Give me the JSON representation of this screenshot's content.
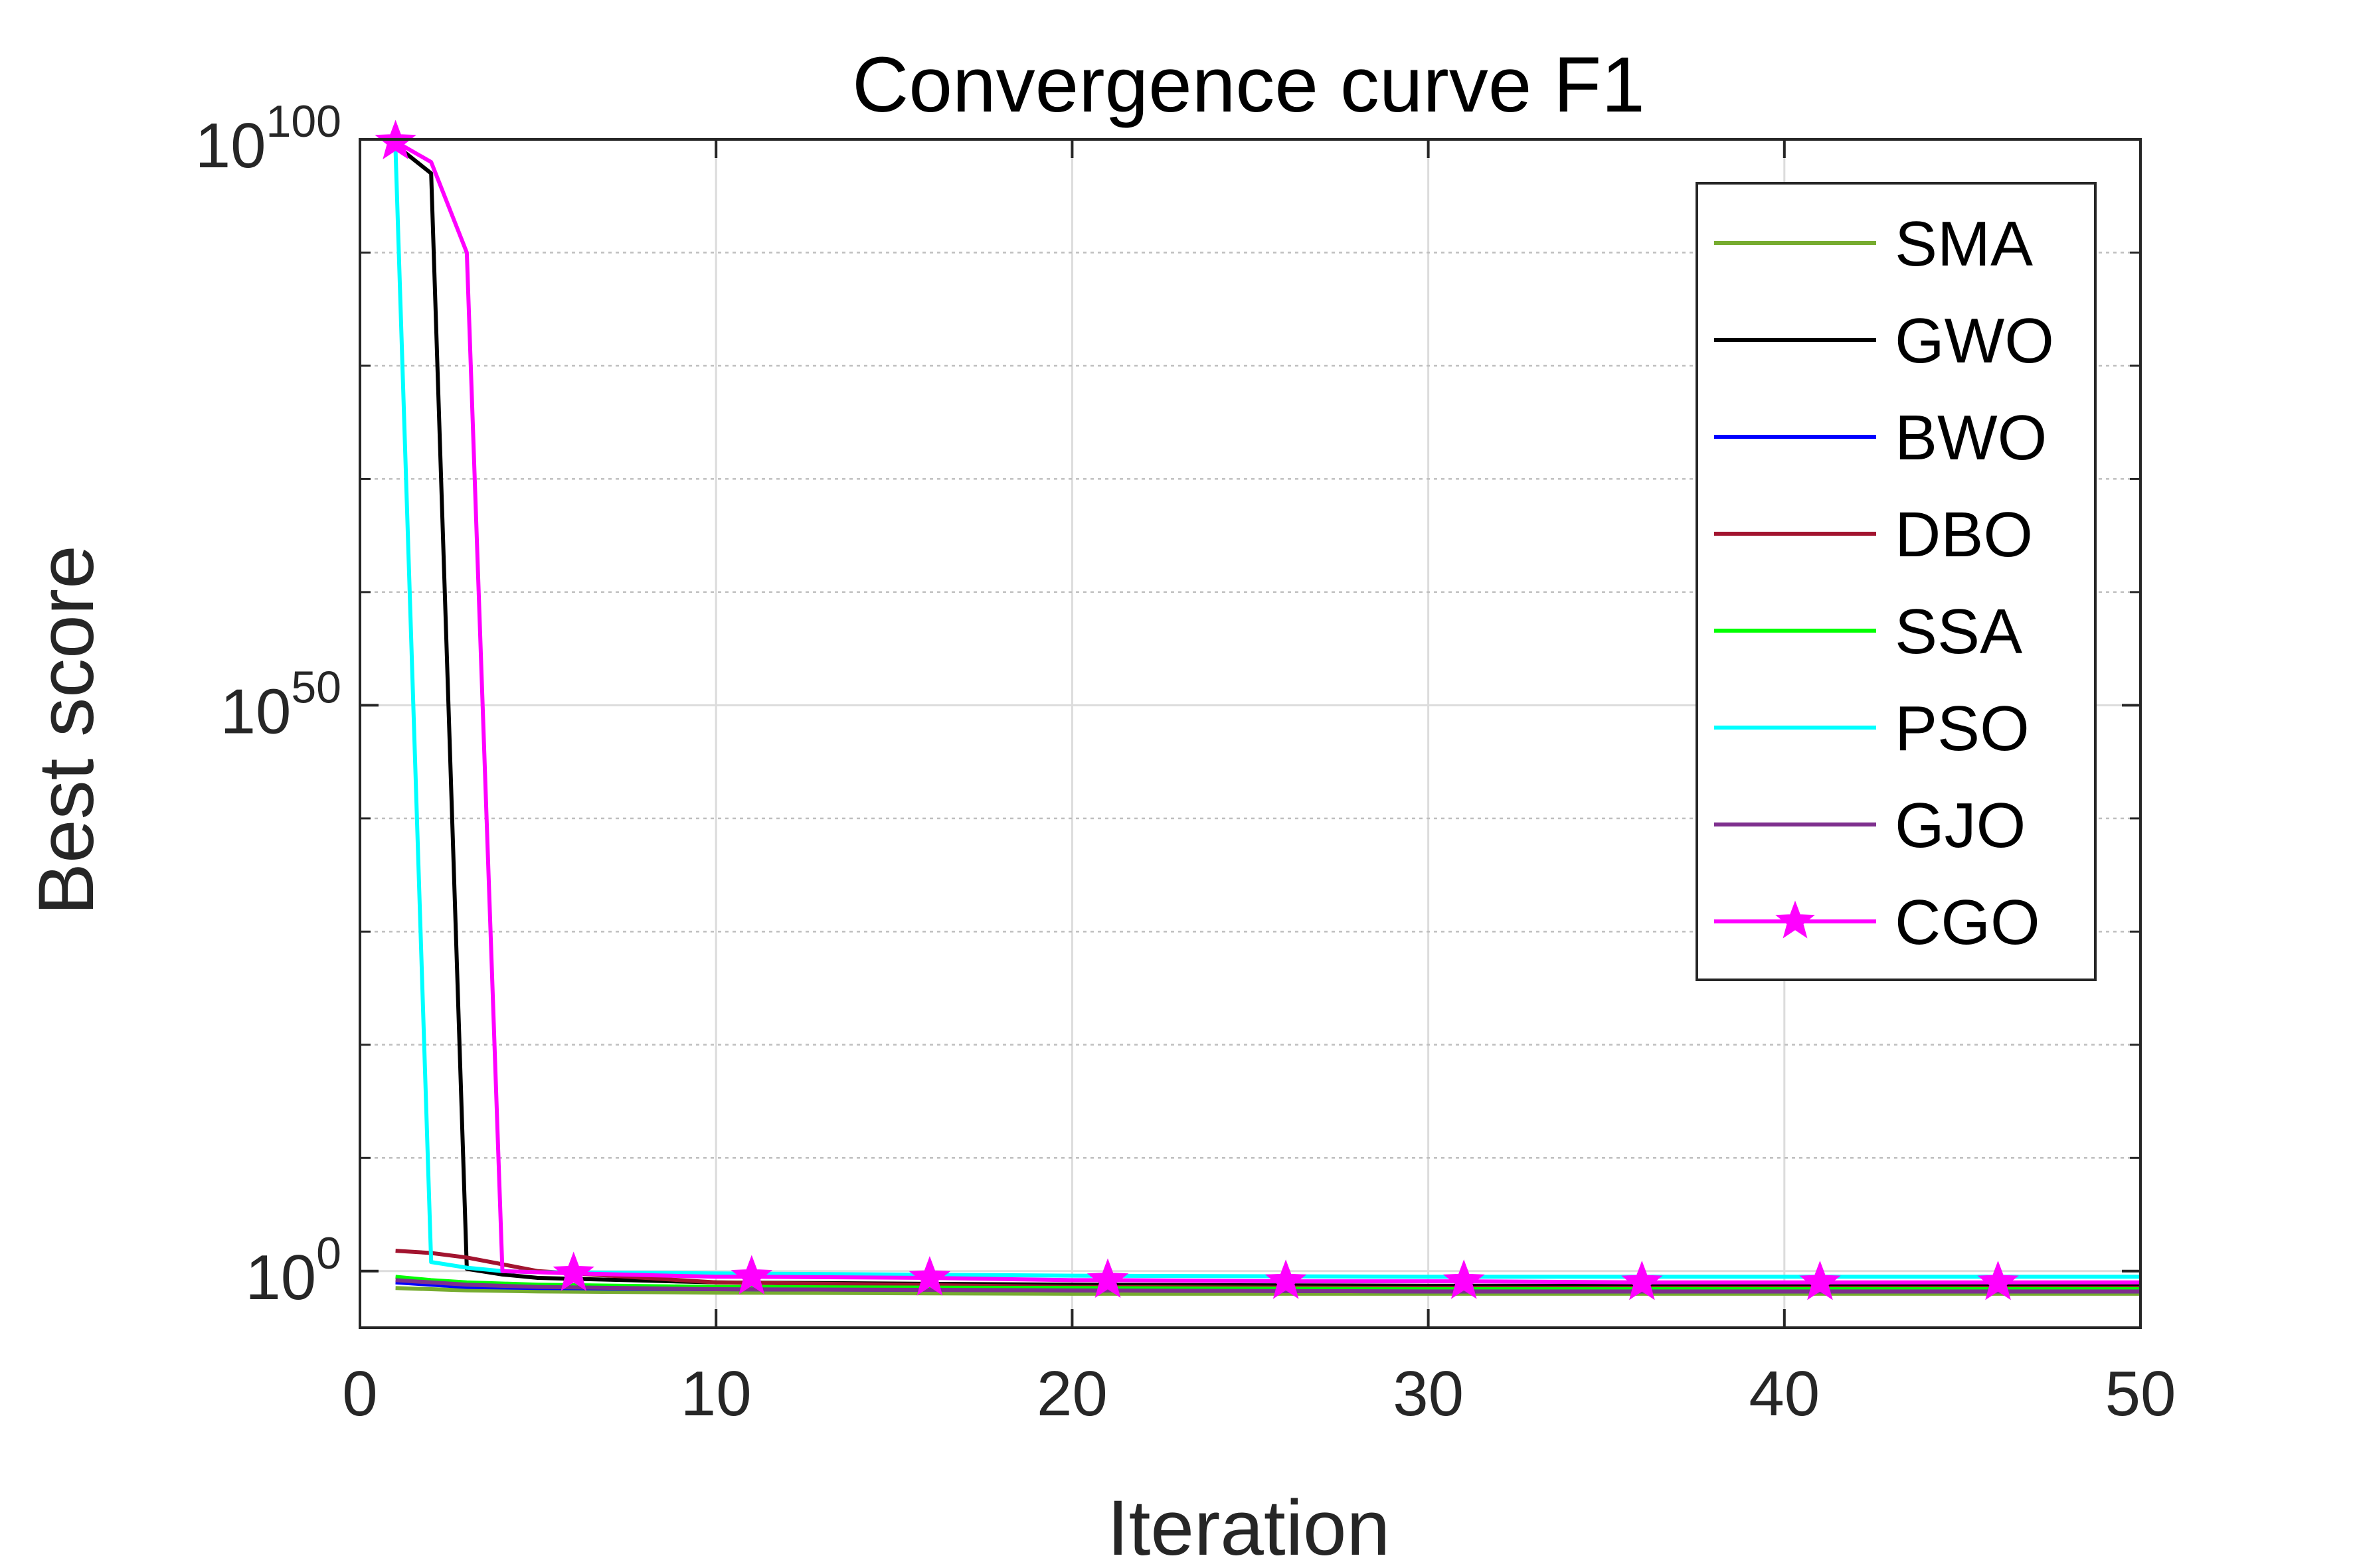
{
  "chart_data": {
    "type": "line",
    "title": "Convergence curve F1",
    "xlabel": "Iteration",
    "ylabel": "Best score",
    "yscale": "log",
    "xlim": [
      0,
      50
    ],
    "ylim_exponent": [
      -5,
      100
    ],
    "xticks": [
      "0",
      "10",
      "20",
      "30",
      "40",
      "50"
    ],
    "yticks": [
      {
        "base": "10",
        "exp": "100",
        "value_exp": 100
      },
      {
        "base": "10",
        "exp": "50",
        "value_exp": 50
      },
      {
        "base": "10",
        "exp": "0",
        "value_exp": 0
      }
    ],
    "grid": true,
    "legend_position": "top-right",
    "series": [
      {
        "name": "SMA",
        "color": "#77ac30",
        "marker": "none",
        "x": [
          1,
          2,
          3,
          5,
          10,
          20,
          30,
          40,
          50
        ],
        "log10_y": [
          -1.5,
          -1.6,
          -1.7,
          -1.8,
          -1.9,
          -2.0,
          -2.0,
          -2.0,
          -2.0
        ]
      },
      {
        "name": "GWO",
        "color": "#000000",
        "marker": "none",
        "x": [
          1,
          2,
          3,
          4,
          5,
          10,
          20,
          30,
          40,
          50
        ],
        "log10_y": [
          99.5,
          97.0,
          0.2,
          -0.3,
          -0.6,
          -1.0,
          -1.2,
          -1.3,
          -1.3,
          -1.3
        ]
      },
      {
        "name": "BWO",
        "color": "#0000ff",
        "marker": "none",
        "x": [
          1,
          2,
          3,
          5,
          10,
          20,
          30,
          40,
          50
        ],
        "log10_y": [
          -1.0,
          -1.2,
          -1.4,
          -1.5,
          -1.6,
          -1.7,
          -1.8,
          -1.8,
          -1.8
        ]
      },
      {
        "name": "DBO",
        "color": "#a2142f",
        "marker": "none",
        "x": [
          1,
          2,
          3,
          4,
          5,
          10,
          20,
          30,
          40,
          50
        ],
        "log10_y": [
          1.8,
          1.6,
          1.2,
          0.6,
          0.0,
          -1.0,
          -1.4,
          -1.5,
          -1.5,
          -1.5
        ]
      },
      {
        "name": "SSA",
        "color": "#00ff00",
        "marker": "none",
        "x": [
          1,
          2,
          3,
          5,
          10,
          20,
          30,
          40,
          50
        ],
        "log10_y": [
          -0.5,
          -0.8,
          -1.0,
          -1.2,
          -1.4,
          -1.5,
          -1.6,
          -1.6,
          -1.6
        ]
      },
      {
        "name": "PSO",
        "color": "#00ffff",
        "marker": "none",
        "x": [
          1,
          2,
          3,
          4,
          5,
          10,
          20,
          30,
          40,
          50
        ],
        "log10_y": [
          99.0,
          0.8,
          0.3,
          0.0,
          -0.1,
          -0.2,
          -0.4,
          -0.5,
          -0.5,
          -0.5
        ]
      },
      {
        "name": "GJO",
        "color": "#7e2f8e",
        "marker": "none",
        "x": [
          1,
          2,
          3,
          5,
          10,
          20,
          30,
          40,
          50
        ],
        "log10_y": [
          -0.8,
          -1.0,
          -1.2,
          -1.4,
          -1.6,
          -1.7,
          -1.8,
          -1.8,
          -1.8
        ]
      },
      {
        "name": "CGO",
        "color": "#ff00ff",
        "marker": "star",
        "x": [
          1,
          2,
          3,
          4,
          5,
          6,
          10,
          11,
          16,
          20,
          21,
          26,
          30,
          31,
          36,
          40,
          41,
          46,
          50
        ],
        "log10_y": [
          99.8,
          98.0,
          90.0,
          0.0,
          -0.1,
          -0.2,
          -0.5,
          -0.5,
          -0.6,
          -0.8,
          -0.8,
          -0.9,
          -0.9,
          -0.9,
          -1.0,
          -1.0,
          -1.0,
          -1.0,
          -1.0
        ],
        "marker_x": [
          1,
          6,
          11,
          16,
          21,
          26,
          31,
          36,
          41,
          46
        ]
      }
    ]
  }
}
